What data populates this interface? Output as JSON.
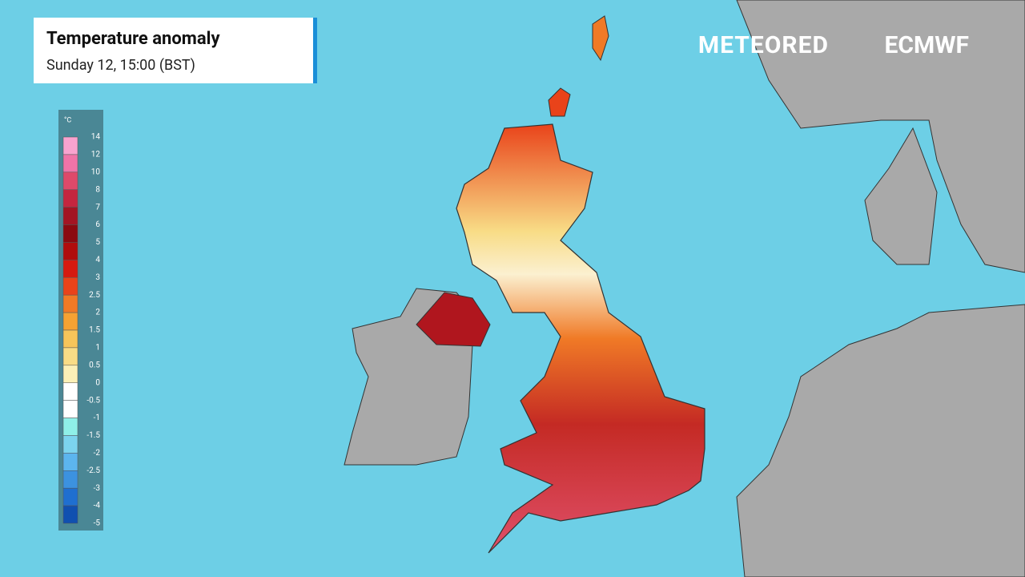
{
  "header": {
    "title": "Temperature anomaly",
    "subtitle": "Sunday 12, 15:00 (BST)"
  },
  "legend": {
    "unit": "°C",
    "ticks": [
      14,
      12,
      10,
      8,
      7,
      6,
      5,
      4,
      3,
      2.5,
      2,
      1.5,
      1,
      0.5,
      0,
      -0.5,
      -1,
      -1.5,
      -2,
      -2.5,
      -3,
      -4,
      -5
    ],
    "colors": [
      "#f9a3cf",
      "#ef74a8",
      "#de4a6a",
      "#c4263f",
      "#a31523",
      "#8b0a10",
      "#b00d0d",
      "#d61a10",
      "#e9431a",
      "#f07a26",
      "#f5a233",
      "#f7c55a",
      "#f8dc86",
      "#fbf0b7",
      "#ffffff",
      "#ffffff",
      "#8ff0e8",
      "#7cd4ee",
      "#5cb5ee",
      "#3c92e0",
      "#1f6fd0",
      "#1050b0"
    ]
  },
  "logos": [
    "METEORED",
    "ECMWF"
  ]
}
